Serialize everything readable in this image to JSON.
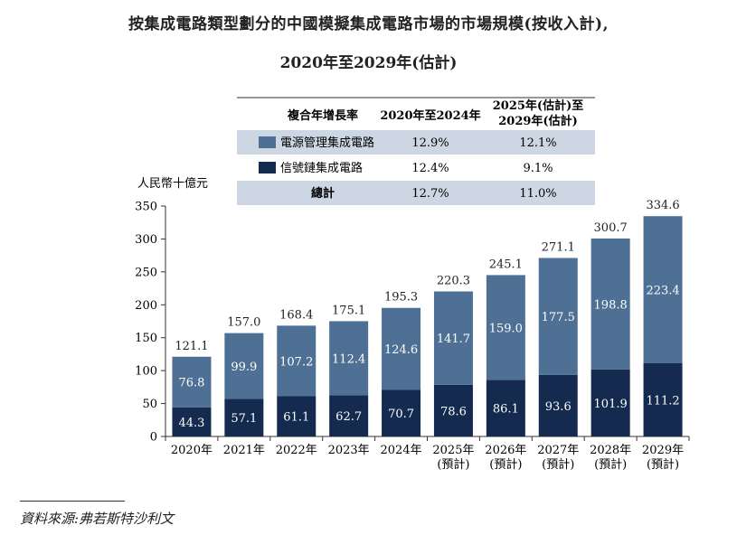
{
  "title_line1": "按集成電路類型劃分的中國模擬集成電路市場的市場規模(按收入計),",
  "title_line2": "2020年至2029年(估計)",
  "source": "資料來源:弗若斯特沙利文",
  "colors": {
    "top": "#4e7094",
    "bottom": "#142b4f",
    "band": "#cdd7e3",
    "axis": "#333333"
  },
  "table": {
    "headers": [
      "複合年增長率",
      "2020年至2024年",
      "2025年(估計)至",
      "2029年(估計)"
    ],
    "rows": [
      {
        "label": "電源管理集成電路",
        "c1": "12.9%",
        "c2": "12.1%",
        "swatch": "top"
      },
      {
        "label": "信號鏈集成電路",
        "c1": "12.4%",
        "c2": "9.1%",
        "swatch": "bottom"
      },
      {
        "label": "總計",
        "c1": "12.7%",
        "c2": "11.0%",
        "swatch": ""
      }
    ]
  },
  "chart_data": {
    "type": "bar",
    "stacked": true,
    "ylabel": "人民幣十億元",
    "ylim": [
      0,
      350
    ],
    "yticks": [
      0,
      50,
      100,
      150,
      200,
      250,
      300,
      350
    ],
    "categories": [
      "2020年",
      "2021年",
      "2022年",
      "2023年",
      "2024年",
      "2025年",
      "2026年",
      "2027年",
      "2028年",
      "2029年"
    ],
    "category_notes": [
      "",
      "",
      "",
      "",
      "",
      "(預計)",
      "(預計)",
      "(預計)",
      "(預計)",
      "(預計)"
    ],
    "series": [
      {
        "name": "信號鏈集成電路",
        "values": [
          44.3,
          57.1,
          61.1,
          62.7,
          70.7,
          78.6,
          86.1,
          93.6,
          101.9,
          111.2
        ]
      },
      {
        "name": "電源管理集成電路",
        "values": [
          76.8,
          99.9,
          107.2,
          112.4,
          124.6,
          141.7,
          159.0,
          177.5,
          198.8,
          223.4
        ]
      }
    ],
    "totals": [
      121.1,
      157.0,
      168.4,
      175.1,
      195.3,
      220.3,
      245.1,
      271.1,
      300.7,
      334.6
    ],
    "totals_labels": [
      "121.1",
      "157.0",
      "168.4",
      "175.1",
      "195.3",
      "220.3",
      "245.1",
      "271.1",
      "300.7",
      "334.6"
    ],
    "bottom_labels": [
      "44.3",
      "57.1",
      "61.1",
      "62.7",
      "70.7",
      "78.6",
      "86.1",
      "93.6",
      "101.9",
      "111.2"
    ],
    "top_labels": [
      "76.8",
      "99.9",
      "107.2",
      "112.4",
      "124.6",
      "141.7",
      "159.0",
      "177.5",
      "198.8",
      "223.4"
    ],
    "ytick_labels": [
      "0",
      "50",
      "100",
      "150",
      "200",
      "250",
      "300",
      "350"
    ]
  }
}
